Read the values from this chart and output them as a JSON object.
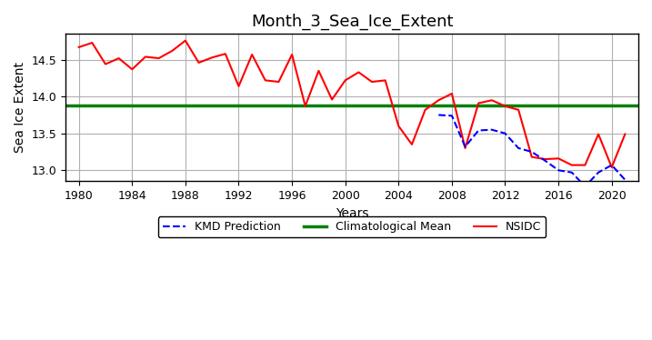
{
  "title": "Month_3_Sea_Ice_Extent",
  "xlabel": "Years",
  "ylabel": "Sea Ice Extent",
  "climatological_mean": 13.88,
  "nsidc_years": [
    1980,
    1981,
    1982,
    1983,
    1984,
    1985,
    1986,
    1987,
    1988,
    1989,
    1990,
    1991,
    1992,
    1993,
    1994,
    1995,
    1996,
    1997,
    1998,
    1999,
    2000,
    2001,
    2002,
    2003,
    2004,
    2005,
    2006,
    2007,
    2008,
    2009,
    2010,
    2011,
    2012,
    2013,
    2014,
    2015,
    2016,
    2017,
    2018,
    2019,
    2020,
    2021
  ],
  "nsidc_values": [
    14.67,
    14.73,
    14.44,
    14.52,
    14.37,
    14.54,
    14.52,
    14.62,
    14.76,
    14.46,
    14.53,
    14.58,
    14.14,
    14.57,
    14.22,
    14.2,
    14.57,
    13.87,
    14.35,
    13.96,
    14.22,
    14.33,
    14.2,
    14.22,
    13.6,
    13.35,
    13.82,
    13.95,
    14.04,
    13.3,
    13.91,
    13.95,
    13.87,
    13.82,
    13.18,
    13.15,
    13.16,
    13.07,
    13.07,
    13.49,
    13.04,
    13.49
  ],
  "kmd_years": [
    2007,
    2008,
    2009,
    2010,
    2011,
    2012,
    2013,
    2014,
    2015,
    2016,
    2017,
    2018,
    2019,
    2020,
    2021
  ],
  "kmd_values": [
    13.75,
    13.74,
    13.32,
    13.54,
    13.55,
    13.5,
    13.3,
    13.25,
    13.13,
    13.0,
    12.97,
    12.78,
    12.97,
    13.07,
    12.87
  ],
  "xlim": [
    1979,
    2022
  ],
  "ylim": [
    12.85,
    14.85
  ],
  "xticks": [
    1980,
    1984,
    1988,
    1992,
    1996,
    2000,
    2004,
    2008,
    2012,
    2016,
    2020
  ],
  "yticks": [
    13.0,
    13.5,
    14.0,
    14.5
  ],
  "nsidc_color": "#ff0000",
  "kmd_color": "#0000ff",
  "clim_color": "#008000",
  "background_color": "#ffffff",
  "grid_color": "#b0b0b0",
  "figsize": [
    7.17,
    3.74
  ],
  "dpi": 100
}
